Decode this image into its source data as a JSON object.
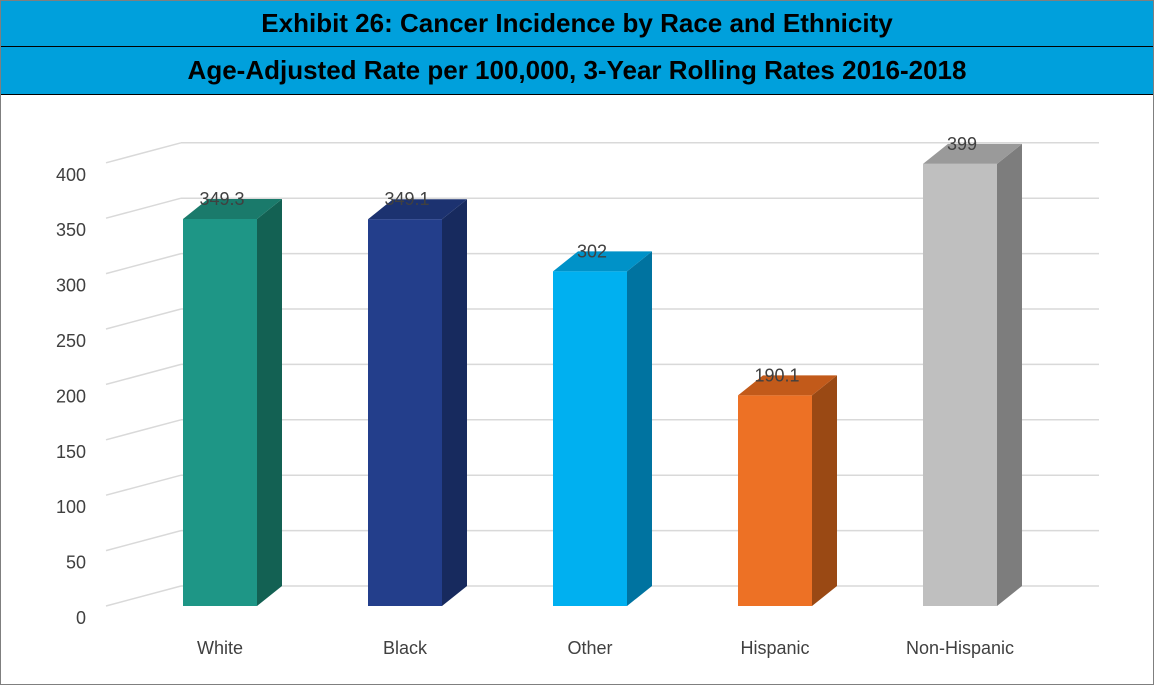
{
  "header": {
    "title": "Exhibit 26: Cancer Incidence by Race and Ethnicity",
    "subtitle": "Age-Adjusted Rate per 100,000, 3-Year Rolling Rates 2016-2018"
  },
  "chart_data": {
    "type": "bar",
    "style": "3d-column",
    "title": "Exhibit 26: Cancer Incidence by Race and Ethnicity",
    "subtitle": "Age-Adjusted Rate per 100,000, 3-Year Rolling Rates 2016-2018",
    "categories": [
      "White",
      "Black",
      "Other",
      "Hispanic",
      "Non-Hispanic"
    ],
    "values": [
      349.3,
      349.1,
      302,
      190.1,
      399
    ],
    "data_labels": [
      "349.3",
      "349.1",
      "302",
      "190.1",
      "399"
    ],
    "colors": [
      "#1e9686",
      "#233e8b",
      "#00b0f0",
      "#ed7125",
      "#bfbfbf"
    ],
    "side_colors": [
      "#136153",
      "#172a5e",
      "#0073a0",
      "#9a4914",
      "#7d7d7d"
    ],
    "top_colors": [
      "#1a7a6b",
      "#1c3270",
      "#0092c8",
      "#c25a1a",
      "#9a9a9a"
    ],
    "yticks": [
      "0",
      "50",
      "100",
      "150",
      "200",
      "250",
      "300",
      "350",
      "400"
    ],
    "ylim": [
      0,
      400
    ],
    "grid": true,
    "legend": "none"
  }
}
